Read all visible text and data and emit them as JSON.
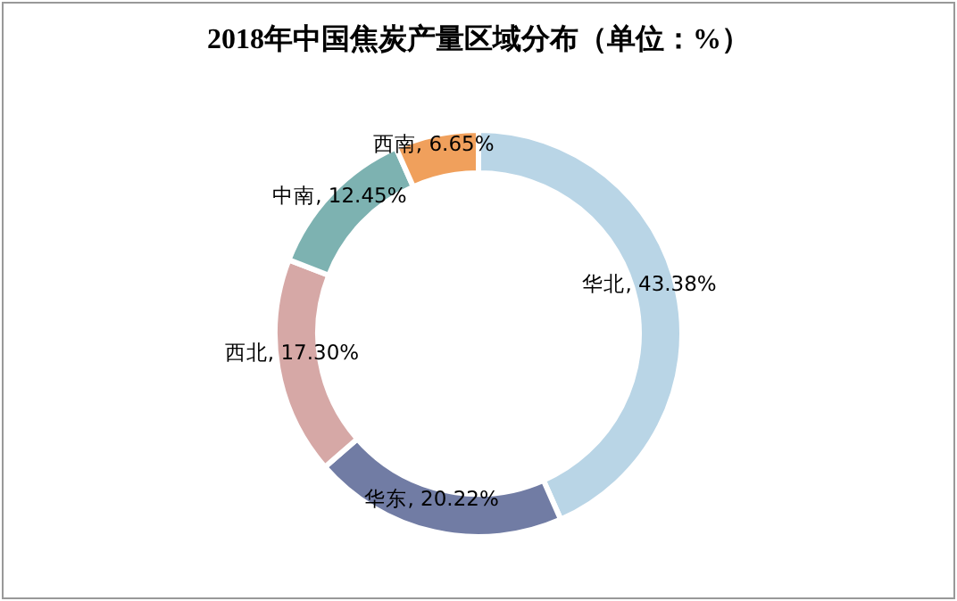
{
  "chart_data": {
    "type": "donut",
    "title": "2018年中国焦炭产量区域分布（单位：%）",
    "categories": [
      "华北",
      "华东",
      "西北",
      "中南",
      "西南"
    ],
    "values": [
      43.38,
      20.22,
      17.3,
      12.45,
      6.65
    ],
    "value_labels": [
      ", 43.38%",
      ", 20.22%",
      ", 17.30%",
      ", 12.45%",
      ", 6.65%"
    ],
    "colors": [
      "#b9d5e6",
      "#717ca4",
      "#d6a8a6",
      "#7db2b1",
      "#f0a05c"
    ]
  }
}
